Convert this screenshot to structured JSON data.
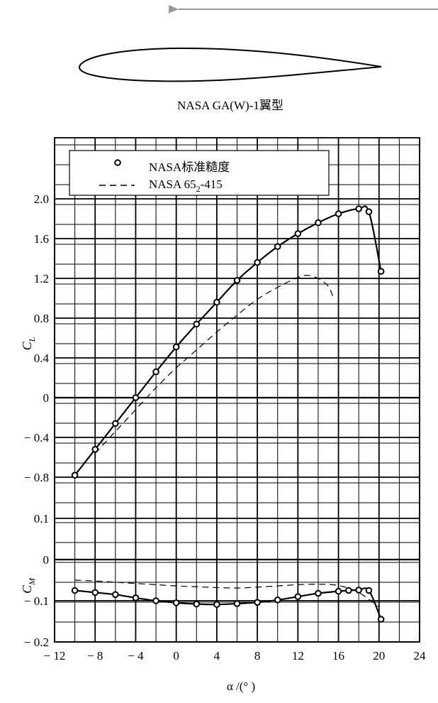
{
  "airfoil_caption": "NASA GA(W)-1翼型",
  "chart_data": [
    {
      "type": "line",
      "panel": "lift",
      "xlabel": "α /(°  )",
      "ylabel": "C_L",
      "xlim": [
        -12,
        24
      ],
      "ylim": [
        -1.0,
        2.4
      ],
      "x_ticks": [
        -12,
        -8,
        -4,
        0,
        4,
        8,
        12,
        16,
        20,
        24
      ],
      "x_tick_labels": [
        "-12",
        "-8",
        "-4",
        "0",
        "4",
        "8",
        "12",
        "16",
        "20",
        "24"
      ],
      "y_ticks": [
        -0.8,
        -0.4,
        0,
        0.4,
        0.8,
        1.2,
        1.6,
        2.0
      ],
      "y_tick_labels": [
        "-0.8",
        "-0.4",
        "0",
        "0.4",
        "0.8",
        "1.2",
        "1.6",
        "2.0"
      ],
      "grid": true,
      "legend_position": "top-left",
      "legend": [
        {
          "label": "NASA标准糙度",
          "style": "circle-markers",
          "color": "#000000"
        },
        {
          "label": "NASA 65",
          "label_sub": "2",
          "label_tail": "-415",
          "style": "dashed",
          "color": "#000000"
        }
      ],
      "series": [
        {
          "style": "solid-with-circles",
          "x": [
            -10,
            -8,
            -6,
            -4,
            -2,
            0,
            2,
            4,
            6,
            8,
            10,
            12,
            14,
            16,
            18,
            19,
            20.2
          ],
          "y": [
            -0.78,
            -0.52,
            -0.26,
            0.0,
            0.26,
            0.51,
            0.74,
            0.96,
            1.18,
            1.36,
            1.52,
            1.65,
            1.76,
            1.85,
            1.9,
            1.87,
            1.27
          ]
        },
        {
          "style": "dashed",
          "x": [
            -8,
            -6,
            -4,
            -2,
            0,
            2,
            4,
            6,
            8,
            10,
            12,
            13,
            14,
            15,
            15.5
          ],
          "y": [
            -0.56,
            -0.34,
            -0.12,
            0.1,
            0.3,
            0.48,
            0.66,
            0.83,
            0.99,
            1.11,
            1.21,
            1.23,
            1.2,
            1.12,
            1.0
          ]
        }
      ]
    },
    {
      "type": "line",
      "panel": "moment",
      "xlabel": "α /(°  )",
      "ylabel": "C_M",
      "xlim": [
        -12,
        24
      ],
      "ylim": [
        -0.2,
        0.2
      ],
      "y_ticks": [
        -0.2,
        -0.1,
        0,
        0.1
      ],
      "y_tick_labels": [
        "-0.2",
        "-0.1",
        "0",
        "0.1"
      ],
      "grid": true,
      "series": [
        {
          "style": "solid-with-circles",
          "x": [
            -10,
            -8,
            -6,
            -4,
            -2,
            0,
            2,
            4,
            6,
            8,
            10,
            12,
            14,
            16,
            17,
            18,
            19,
            20.2
          ],
          "y": [
            -0.075,
            -0.08,
            -0.085,
            -0.093,
            -0.1,
            -0.105,
            -0.108,
            -0.109,
            -0.107,
            -0.104,
            -0.098,
            -0.09,
            -0.082,
            -0.077,
            -0.075,
            -0.074,
            -0.075,
            -0.145
          ]
        },
        {
          "style": "dashed",
          "x": [
            -10,
            -8,
            -6,
            -4,
            -2,
            0,
            2,
            4,
            6,
            8,
            10,
            12,
            14,
            16,
            18,
            20
          ],
          "y": [
            -0.05,
            -0.052,
            -0.055,
            -0.058,
            -0.061,
            -0.064,
            -0.066,
            -0.068,
            -0.069,
            -0.067,
            -0.064,
            -0.061,
            -0.06,
            -0.063,
            -0.08,
            -0.115
          ]
        }
      ]
    }
  ]
}
